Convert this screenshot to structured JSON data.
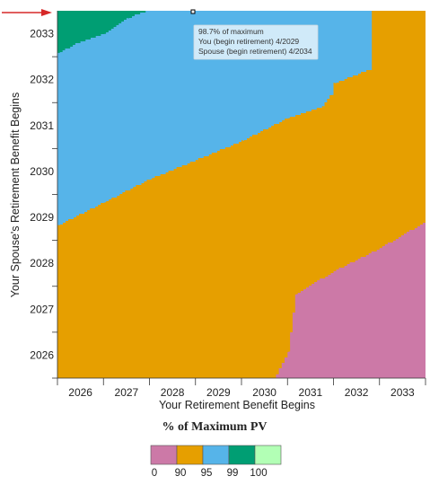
{
  "chart_data": {
    "type": "heatmap",
    "xlabel": "Your Retirement Benefit Begins",
    "ylabel": "Your Spouse's Retirement Benefit Begins",
    "x_ticks": [
      "2026",
      "2027",
      "2028",
      "2029",
      "2030",
      "2031",
      "2032",
      "2033"
    ],
    "y_ticks": [
      "2026",
      "2027",
      "2028",
      "2029",
      "2030",
      "2031",
      "2032",
      "2033"
    ],
    "xlim": [
      "2026-01",
      "2033-12"
    ],
    "ylim": [
      "2026-01",
      "2033-12"
    ],
    "regions": [
      {
        "range": "0-90",
        "color": "#cc79a7",
        "boundary_top": [
          [
            "2030-09",
            "2026-01"
          ],
          [
            "2031-00",
            "2026-07"
          ],
          [
            "2031-02",
            "2027-10"
          ],
          [
            "2032-00",
            "2028-04"
          ],
          [
            "2033-00",
            "2028-10"
          ],
          [
            "2033-12",
            "2029-05"
          ]
        ]
      },
      {
        "range": "90-95",
        "color": "#e69f00",
        "boundary_top": [
          [
            "2026-00",
            "2029-04"
          ],
          [
            "2027-00",
            "2029-10"
          ],
          [
            "2028-00",
            "2030-04"
          ],
          [
            "2029-00",
            "2030-09"
          ],
          [
            "2030-00",
            "2031-02"
          ],
          [
            "2031-00",
            "2031-08"
          ],
          [
            "2031-09",
            "2031-11"
          ],
          [
            "2031-11",
            "2032-02"
          ],
          [
            "2032-00",
            "2032-05"
          ],
          [
            "2032-10",
            "2032-09"
          ],
          [
            "2032-10",
            "2033-12"
          ]
        ]
      },
      {
        "range": "95-99",
        "color": "#56b4e9"
      },
      {
        "range": "99-100",
        "color": "#009e73",
        "boundary_bottom": [
          [
            "2026-00",
            "2033-01"
          ],
          [
            "2026-06",
            "2033-04"
          ],
          [
            "2027-00",
            "2033-06"
          ],
          [
            "2027-06",
            "2033-10"
          ],
          [
            "2027-11",
            "2033-12"
          ]
        ]
      }
    ],
    "tooltip": {
      "line1": "98.7% of maximum",
      "line2": "You (begin retirement) 4/2029",
      "line3": "Spouse (begin retirement) 4/2034"
    },
    "legend": {
      "title": "% of Maximum PV",
      "labels": [
        "0",
        "90",
        "95",
        "99",
        "100"
      ],
      "colors": [
        "#cc79a7",
        "#e69f00",
        "#56b4e9",
        "#009e73",
        "#b2ffb5"
      ],
      "placement": "bottom"
    },
    "annotation_arrow_color": "#d62828"
  }
}
